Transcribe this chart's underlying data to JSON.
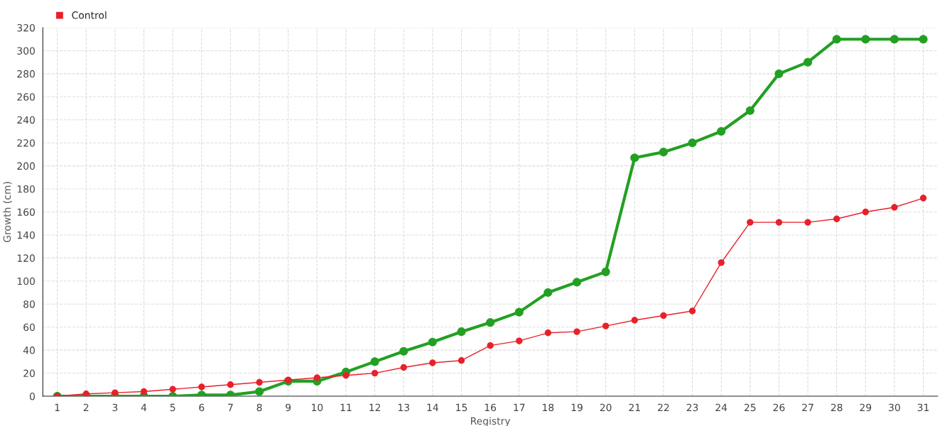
{
  "chart_data": {
    "type": "line",
    "xlabel": "Registry",
    "ylabel": "Growth (cm)",
    "categories": [
      "1",
      "2",
      "3",
      "4",
      "5",
      "6",
      "7",
      "8",
      "9",
      "10",
      "11",
      "12",
      "13",
      "14",
      "15",
      "16",
      "17",
      "18",
      "19",
      "20",
      "21",
      "22",
      "23",
      "24",
      "25",
      "26",
      "27",
      "28",
      "29",
      "30",
      "31"
    ],
    "series": [
      {
        "color": "#22a022",
        "values": [
          0,
          0,
          0,
          0,
          0,
          1,
          1,
          4,
          13,
          13,
          21,
          30,
          39,
          47,
          56,
          64,
          73,
          90,
          99,
          108,
          207,
          212,
          220,
          230,
          248,
          280,
          290,
          310,
          310,
          310,
          310
        ]
      },
      {
        "name": "Control",
        "color": "#e8202a",
        "values": [
          0,
          2,
          3,
          4,
          6,
          8,
          10,
          12,
          14,
          16,
          18,
          20,
          25,
          29,
          31,
          44,
          48,
          55,
          56,
          61,
          66,
          70,
          74,
          116,
          151,
          151,
          151,
          154,
          160,
          164,
          172
        ]
      }
    ],
    "ylim": [
      0,
      320
    ],
    "yticks": [
      0,
      20,
      40,
      60,
      80,
      100,
      120,
      140,
      160,
      180,
      200,
      220,
      240,
      260,
      280,
      300,
      320
    ],
    "grid": true,
    "legend": "top left",
    "marker": "circle",
    "line_style": "solid"
  }
}
